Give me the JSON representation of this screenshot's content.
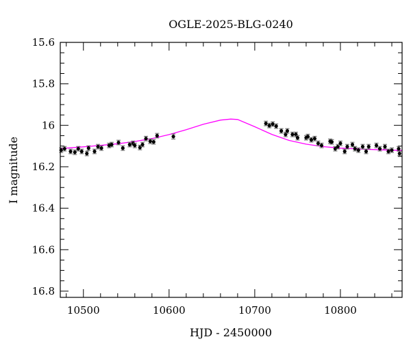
{
  "chart_data": {
    "type": "scatter",
    "title": "OGLE-2025-BLG-0240",
    "xlabel": "HJD - 2450000",
    "ylabel": "I magnitude",
    "xlim": [
      10473,
      10872
    ],
    "ylim": [
      16.83,
      15.6
    ],
    "y_inverted": true,
    "grid": false,
    "x_ticks": [
      10500,
      10600,
      10700,
      10800
    ],
    "x_tick_labels": [
      "10500",
      "10600",
      "10700",
      "10800"
    ],
    "x_minor_step": 20,
    "y_ticks": [
      15.6,
      15.8,
      16,
      16.2,
      16.4,
      16.6,
      16.8
    ],
    "y_tick_labels": [
      "15.6",
      "15.8",
      "16",
      "16.2",
      "16.4",
      "16.6",
      "16.8"
    ],
    "y_minor_step": 0.05,
    "colors": {
      "points": "#000000",
      "errorbars": "#555555",
      "model": "#ff00ff"
    },
    "series": [
      {
        "kind": "points_with_errorbars",
        "points": [
          [
            10474,
            16.12,
            0.011
          ],
          [
            10478,
            16.113,
            0.011
          ],
          [
            10485,
            16.126,
            0.011
          ],
          [
            10490,
            16.13,
            0.011
          ],
          [
            10494,
            16.113,
            0.011
          ],
          [
            10498,
            16.126,
            0.011
          ],
          [
            10504,
            16.136,
            0.011
          ],
          [
            10506,
            16.11,
            0.011
          ],
          [
            10513,
            16.126,
            0.011
          ],
          [
            10517,
            16.103,
            0.011
          ],
          [
            10521,
            16.11,
            0.011
          ],
          [
            10530,
            16.097,
            0.011
          ],
          [
            10533,
            16.093,
            0.011
          ],
          [
            10541,
            16.083,
            0.011
          ],
          [
            10546,
            16.11,
            0.011
          ],
          [
            10554,
            16.093,
            0.011
          ],
          [
            10558,
            16.087,
            0.011
          ],
          [
            10560,
            16.097,
            0.011
          ],
          [
            10566,
            16.107,
            0.011
          ],
          [
            10569,
            16.093,
            0.011
          ],
          [
            10573,
            16.064,
            0.011
          ],
          [
            10578,
            16.077,
            0.011
          ],
          [
            10582,
            16.08,
            0.011
          ],
          [
            10586,
            16.05,
            0.011
          ],
          [
            10605,
            16.054,
            0.012
          ],
          [
            10713,
            15.991,
            0.011
          ],
          [
            10717,
            16.001,
            0.011
          ],
          [
            10721,
            15.994,
            0.011
          ],
          [
            10725,
            16.004,
            0.011
          ],
          [
            10731,
            16.027,
            0.011
          ],
          [
            10736,
            16.044,
            0.011
          ],
          [
            10738,
            16.027,
            0.011
          ],
          [
            10744,
            16.044,
            0.011
          ],
          [
            10748,
            16.044,
            0.011
          ],
          [
            10750,
            16.06,
            0.011
          ],
          [
            10760,
            16.06,
            0.011
          ],
          [
            10762,
            16.054,
            0.011
          ],
          [
            10766,
            16.07,
            0.011
          ],
          [
            10770,
            16.064,
            0.011
          ],
          [
            10774,
            16.087,
            0.011
          ],
          [
            10778,
            16.097,
            0.011
          ],
          [
            10788,
            16.077,
            0.011
          ],
          [
            10790,
            16.08,
            0.011
          ],
          [
            10794,
            16.113,
            0.011
          ],
          [
            10797,
            16.103,
            0.011
          ],
          [
            10800,
            16.087,
            0.011
          ],
          [
            10805,
            16.126,
            0.011
          ],
          [
            10808,
            16.103,
            0.011
          ],
          [
            10814,
            16.093,
            0.011
          ],
          [
            10817,
            16.113,
            0.011
          ],
          [
            10821,
            16.12,
            0.011
          ],
          [
            10826,
            16.103,
            0.011
          ],
          [
            10830,
            16.126,
            0.011
          ],
          [
            10833,
            16.103,
            0.011
          ],
          [
            10842,
            16.097,
            0.011
          ],
          [
            10846,
            16.113,
            0.011
          ],
          [
            10852,
            16.103,
            0.011
          ],
          [
            10856,
            16.126,
            0.011
          ],
          [
            10860,
            16.12,
            0.011
          ],
          [
            10868,
            16.113,
            0.011
          ],
          [
            10869,
            16.136,
            0.011
          ]
        ]
      },
      {
        "kind": "model_line",
        "x": [
          10473,
          10500,
          10520,
          10540,
          10560,
          10580,
          10600,
          10620,
          10640,
          10660,
          10672,
          10680,
          10700,
          10720,
          10740,
          10760,
          10780,
          10800,
          10820,
          10840,
          10860,
          10872
        ],
        "y": [
          16.112,
          16.104,
          16.097,
          16.089,
          16.078,
          16.064,
          16.045,
          16.021,
          15.995,
          15.975,
          15.97,
          15.972,
          16.007,
          16.044,
          16.073,
          16.091,
          16.103,
          16.11,
          16.114,
          16.117,
          16.12,
          16.121
        ]
      }
    ]
  }
}
